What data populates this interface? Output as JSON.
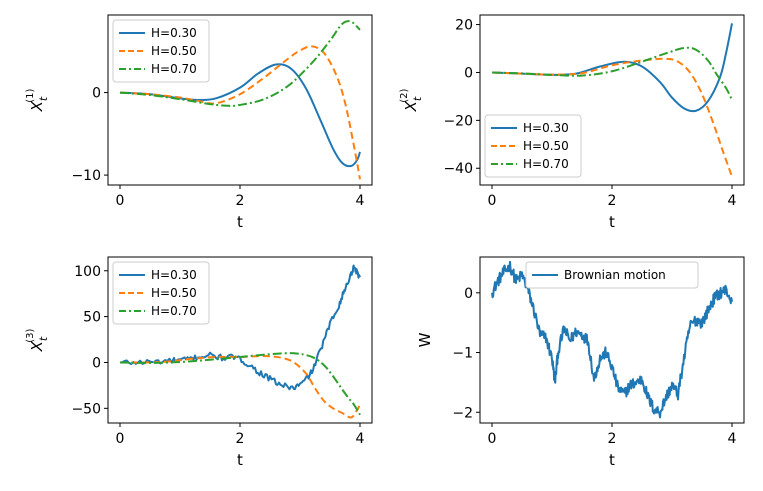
{
  "colors": {
    "blue": "#1f77b4",
    "orange": "#ff7f0e",
    "green": "#2ca02c"
  },
  "chart_data": [
    {
      "id": "x1",
      "type": "line",
      "xlabel": "t",
      "ylabel": {
        "base": "X",
        "sub": "t",
        "sup": "(1)"
      },
      "xlim": [
        -0.2,
        4.2
      ],
      "ylim": [
        -11.2,
        9.4
      ],
      "xticks": [
        0,
        2,
        4
      ],
      "xtick_labels": [
        "0",
        "2",
        "4"
      ],
      "yticks": [
        -10,
        0
      ],
      "ytick_labels": [
        "−10",
        "0"
      ],
      "legend_position": "upper-left",
      "series": [
        {
          "name": "H=0.30",
          "color": "#1f77b4",
          "dash": "solid",
          "x": [
            0,
            0.5,
            1.0,
            1.3,
            1.6,
            2.0,
            2.3,
            2.6,
            2.85,
            3.1,
            3.35,
            3.55,
            3.7,
            3.85,
            3.95,
            4.0
          ],
          "y": [
            0,
            -0.2,
            -0.7,
            -0.9,
            -0.7,
            0.6,
            2.3,
            3.4,
            2.9,
            0.5,
            -3.5,
            -6.8,
            -8.5,
            -8.9,
            -8.2,
            -7.2
          ]
        },
        {
          "name": "H=0.50",
          "color": "#ff7f0e",
          "dash": "dashed",
          "x": [
            0,
            0.5,
            1.0,
            1.3,
            1.6,
            2.0,
            2.4,
            2.8,
            3.0,
            3.2,
            3.4,
            3.6,
            3.75,
            3.9,
            4.0
          ],
          "y": [
            0,
            -0.2,
            -0.6,
            -1.0,
            -1.3,
            -0.2,
            1.8,
            4.1,
            5.1,
            5.6,
            4.8,
            2.2,
            -1.2,
            -6.5,
            -10.5
          ]
        },
        {
          "name": "H=0.70",
          "color": "#2ca02c",
          "dash": "dashdot",
          "x": [
            0,
            0.5,
            1.0,
            1.5,
            1.8,
            2.0,
            2.4,
            2.8,
            3.2,
            3.5,
            3.7,
            3.85,
            4.0
          ],
          "y": [
            0,
            -0.3,
            -0.8,
            -1.4,
            -1.6,
            -1.5,
            -0.8,
            0.8,
            3.6,
            6.3,
            8.3,
            8.6,
            7.6
          ]
        }
      ]
    },
    {
      "id": "x2",
      "type": "line",
      "xlabel": "t",
      "ylabel": {
        "base": "X",
        "sub": "t",
        "sup": "(2)"
      },
      "xlim": [
        -0.2,
        4.2
      ],
      "ylim": [
        -47,
        24
      ],
      "xticks": [
        0,
        2,
        4
      ],
      "xtick_labels": [
        "0",
        "2",
        "4"
      ],
      "yticks": [
        -40,
        -20,
        0,
        20
      ],
      "ytick_labels": [
        "−40",
        "−20",
        "0",
        "20"
      ],
      "legend_position": "lower-left",
      "series": [
        {
          "name": "H=0.30",
          "color": "#1f77b4",
          "dash": "solid",
          "x": [
            0,
            0.5,
            1.0,
            1.4,
            1.8,
            2.2,
            2.5,
            2.8,
            3.0,
            3.2,
            3.4,
            3.6,
            3.8,
            3.9,
            4.0
          ],
          "y": [
            0,
            -0.5,
            -1.0,
            -0.5,
            2.5,
            4.5,
            2.5,
            -4,
            -10.5,
            -15,
            -16,
            -12,
            -2,
            8,
            20.5
          ]
        },
        {
          "name": "H=0.50",
          "color": "#ff7f0e",
          "dash": "dashed",
          "x": [
            0,
            0.5,
            1.0,
            1.5,
            2.0,
            2.5,
            2.9,
            3.1,
            3.3,
            3.5,
            3.7,
            3.85,
            4.0
          ],
          "y": [
            0,
            -0.5,
            -0.9,
            -0.3,
            3.0,
            5.0,
            5.7,
            4.5,
            0,
            -9,
            -22,
            -33,
            -43.5
          ]
        },
        {
          "name": "H=0.70",
          "color": "#2ca02c",
          "dash": "dashdot",
          "x": [
            0,
            0.5,
            1.0,
            1.5,
            2.0,
            2.5,
            2.9,
            3.2,
            3.4,
            3.6,
            3.75,
            3.9,
            4.0
          ],
          "y": [
            0,
            -0.4,
            -1.0,
            -1.3,
            0.5,
            4.5,
            8.0,
            10.2,
            9.5,
            5.0,
            -1.0,
            -6.5,
            -11.5
          ]
        }
      ]
    },
    {
      "id": "x3",
      "type": "line",
      "xlabel": "t",
      "ylabel": {
        "base": "X",
        "sub": "t",
        "sup": "(3)"
      },
      "xlim": [
        -0.2,
        4.2
      ],
      "ylim": [
        -66,
        115
      ],
      "xticks": [
        0,
        2,
        4
      ],
      "xtick_labels": [
        "0",
        "2",
        "4"
      ],
      "yticks": [
        -50,
        0,
        50,
        100
      ],
      "ytick_labels": [
        "−50",
        "0",
        "50",
        "100"
      ],
      "legend_position": "upper-left",
      "series": [
        {
          "name": "H=0.30",
          "color": "#1f77b4",
          "dash": "solid",
          "x": [
            0,
            0.3,
            0.6,
            0.9,
            1.1,
            1.3,
            1.5,
            1.7,
            1.9,
            2.1,
            2.3,
            2.5,
            2.7,
            2.9,
            3.05,
            3.2,
            3.35,
            3.5,
            3.65,
            3.75,
            3.85,
            3.9,
            3.95,
            4.0
          ],
          "y": [
            0,
            0,
            1,
            2,
            3,
            6,
            8,
            5,
            6,
            0,
            -10,
            -18,
            -25,
            -28,
            -22,
            -10,
            15,
            42,
            63,
            80,
            96,
            105,
            98,
            93
          ]
        },
        {
          "name": "H=0.50",
          "color": "#ff7f0e",
          "dash": "dashed",
          "x": [
            0,
            0.4,
            0.8,
            1.2,
            1.6,
            2.0,
            2.4,
            2.7,
            2.9,
            3.1,
            3.25,
            3.4,
            3.55,
            3.7,
            3.85,
            3.95,
            4.0
          ],
          "y": [
            0,
            0,
            1,
            4,
            6,
            6,
            7,
            5,
            0,
            -12,
            -28,
            -42,
            -50,
            -55,
            -60,
            -52,
            -46
          ]
        },
        {
          "name": "H=0.70",
          "color": "#2ca02c",
          "dash": "dashdot",
          "x": [
            0,
            0.5,
            1.0,
            1.5,
            2.0,
            2.5,
            2.9,
            3.2,
            3.4,
            3.55,
            3.7,
            3.8,
            3.9,
            4.0
          ],
          "y": [
            0,
            -0.5,
            0.5,
            3,
            6,
            9,
            10,
            6,
            -3,
            -15,
            -29,
            -38,
            -46,
            -57
          ]
        }
      ]
    },
    {
      "id": "w",
      "type": "line",
      "xlabel": "t",
      "ylabel": {
        "base": "W",
        "sub": "",
        "sup": ""
      },
      "xlim": [
        -0.2,
        4.2
      ],
      "ylim": [
        -2.18,
        0.6
      ],
      "xticks": [
        0,
        2,
        4
      ],
      "xtick_labels": [
        "0",
        "2",
        "4"
      ],
      "yticks": [
        -2,
        -1,
        0
      ],
      "ytick_labels": [
        "−2",
        "−1",
        "0"
      ],
      "legend_position": "top-center",
      "series": [
        {
          "name": "Brownian motion",
          "color": "#1f77b4",
          "dash": "solid",
          "noisy": true,
          "x": [
            0,
            0.1,
            0.2,
            0.3,
            0.4,
            0.5,
            0.6,
            0.7,
            0.8,
            0.9,
            1.0,
            1.05,
            1.1,
            1.2,
            1.3,
            1.4,
            1.5,
            1.6,
            1.7,
            1.8,
            1.9,
            2.0,
            2.1,
            2.2,
            2.3,
            2.4,
            2.5,
            2.6,
            2.7,
            2.8,
            2.9,
            3.0,
            3.1,
            3.2,
            3.3,
            3.4,
            3.5,
            3.6,
            3.7,
            3.8,
            3.9,
            4.0
          ],
          "y": [
            0,
            0.2,
            0.35,
            0.45,
            0.2,
            0.3,
            0.05,
            -0.3,
            -0.7,
            -0.75,
            -1.1,
            -1.5,
            -1.0,
            -0.6,
            -0.8,
            -0.65,
            -0.7,
            -0.8,
            -1.45,
            -1.1,
            -1.0,
            -1.25,
            -1.6,
            -1.7,
            -1.55,
            -1.5,
            -1.45,
            -1.75,
            -1.95,
            -2.0,
            -1.75,
            -1.55,
            -1.7,
            -1.1,
            -0.55,
            -0.45,
            -0.5,
            -0.3,
            -0.1,
            0.0,
            0.05,
            -0.15
          ]
        }
      ]
    }
  ]
}
